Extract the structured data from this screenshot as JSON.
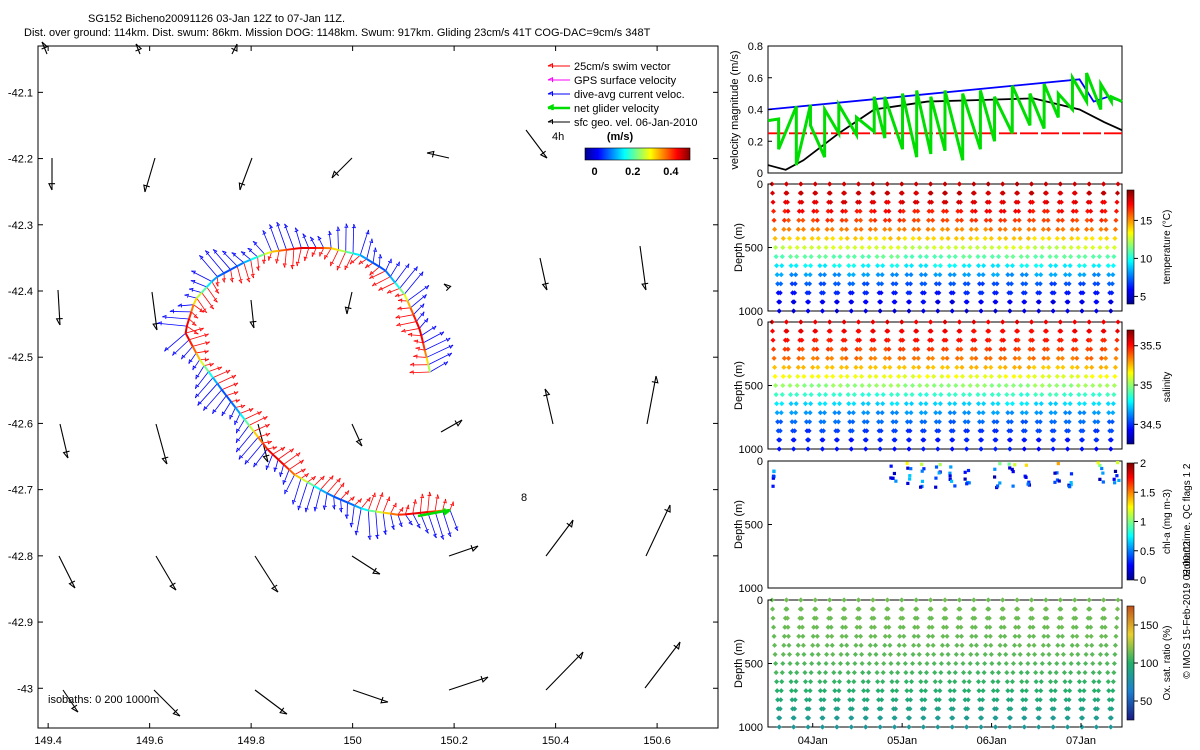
{
  "header": {
    "line1": "SG152 Bicheno20091126 03-Jan 12Z to 07-Jan 11Z.",
    "line2": "Dist. over ground: 114km. Dist. swum: 86km. Mission DOG: 1148km. Swum: 917km. Gliding 23cm/s 41T COG-DAC=9cm/s 348T"
  },
  "map": {
    "legend": [
      {
        "label": "25cm/s swim vector",
        "color": "#ff0000"
      },
      {
        "label": "GPS surface velocity",
        "color": "#ff00ff"
      },
      {
        "label": "dive-avg current veloc.",
        "color": "#0000ff"
      },
      {
        "label": "net glider velocity",
        "color": "#00dd00"
      },
      {
        "label": "sfc geo. vel. 06-Jan-2010",
        "color": "#000000"
      }
    ],
    "colorbar_unit": "(m/s)",
    "colorbar_ticks": [
      "0",
      "0.2",
      "0.4"
    ],
    "colorbar_range": [
      -0.05,
      0.5
    ],
    "time_label": "4h",
    "annotation_8": "8",
    "isobaths_label": "isobaths: 0   200  1000m",
    "x_ticks": [
      "149.4",
      "149.6",
      "149.8",
      "150",
      "150.2",
      "150.4",
      "150.6"
    ],
    "x_tick_values": [
      149.4,
      149.6,
      149.8,
      150.0,
      150.2,
      150.4,
      150.6
    ],
    "y_ticks": [
      "-42.1",
      "-42.2",
      "-42.3",
      "-42.4",
      "-42.5",
      "-42.6",
      "-42.7",
      "-42.8",
      "-42.9",
      "-43"
    ],
    "y_tick_values": [
      -42.1,
      -42.2,
      -42.3,
      -42.4,
      -42.5,
      -42.6,
      -42.7,
      -42.8,
      -42.9,
      -43.0
    ],
    "xlim": [
      149.38,
      150.72
    ],
    "ylim": [
      -43.06,
      -42.03
    ]
  },
  "chart_data": [
    {
      "type": "line",
      "ylabel": "velocity magnitude (m/s)",
      "y_ticks": [
        "0",
        "0.2",
        "0.4",
        "0.6",
        "0.8"
      ],
      "y_tick_values": [
        0,
        0.2,
        0.4,
        0.6,
        0.8
      ],
      "ylim": [
        0,
        0.8
      ],
      "xlim": [
        0,
        100
      ],
      "series": [
        {
          "color": "#0000ff",
          "x": [
            0,
            88,
            92,
            96,
            100
          ],
          "values": [
            0.4,
            0.59,
            0.45,
            0.48,
            0.45
          ]
        },
        {
          "color": "#000000",
          "x": [
            0,
            5,
            10,
            20,
            30,
            45,
            60,
            75,
            88,
            95,
            100
          ],
          "values": [
            0.05,
            0.02,
            0.08,
            0.25,
            0.4,
            0.45,
            0.46,
            0.47,
            0.4,
            0.32,
            0.27
          ]
        },
        {
          "color": "#ff0000",
          "x": [
            0,
            100
          ],
          "values": [
            0.25,
            0.25
          ]
        },
        {
          "color": "#00dd00",
          "x": [
            0,
            3,
            3,
            8,
            8,
            12,
            12,
            16,
            16,
            20,
            20,
            25,
            25,
            30,
            30,
            33,
            33,
            38,
            38,
            42,
            42,
            46,
            46,
            50,
            50,
            55,
            55,
            60,
            60,
            64,
            64,
            69,
            69,
            74,
            74,
            78,
            78,
            82,
            82,
            86,
            86,
            90,
            90,
            94,
            94,
            97,
            97,
            100
          ],
          "values": [
            0.33,
            0.34,
            0.15,
            0.42,
            0.05,
            0.43,
            0.3,
            0.1,
            0.4,
            0.25,
            0.43,
            0.24,
            0.35,
            0.26,
            0.48,
            0.22,
            0.48,
            0.15,
            0.5,
            0.1,
            0.52,
            0.12,
            0.48,
            0.14,
            0.52,
            0.08,
            0.5,
            0.15,
            0.52,
            0.2,
            0.48,
            0.25,
            0.55,
            0.3,
            0.5,
            0.28,
            0.56,
            0.35,
            0.5,
            0.4,
            0.6,
            0.45,
            0.63,
            0.4,
            0.56,
            0.45,
            0.48,
            0.45
          ]
        }
      ]
    },
    {
      "type": "scatter",
      "ylabel": "Depth (m)",
      "colorbar_label": "temperature (°C)",
      "colorbar_ticks": [
        "5",
        "10",
        "15"
      ],
      "colorbar_tick_values": [
        5,
        10,
        15
      ],
      "colorbar_range": [
        4,
        19
      ],
      "y_ticks": [
        "0",
        "500",
        "1000"
      ],
      "y_tick_values": [
        0,
        500,
        1000
      ],
      "ylim": [
        0,
        1000
      ],
      "profile": {
        "top": 18.5,
        "bottom": 4.5,
        "mid_depth": 550
      }
    },
    {
      "type": "scatter",
      "ylabel": "Depth (m)",
      "colorbar_label": "salinity",
      "colorbar_ticks": [
        "34.5",
        "35",
        "35.5"
      ],
      "colorbar_tick_values": [
        34.5,
        35,
        35.5
      ],
      "colorbar_range": [
        34.25,
        35.7
      ],
      "y_ticks": [
        "0",
        "500",
        "1000"
      ],
      "y_tick_values": [
        0,
        500,
        1000
      ],
      "ylim": [
        0,
        1000
      ],
      "profile": {
        "top": 35.6,
        "bottom": 34.4,
        "mid_depth": 500
      }
    },
    {
      "type": "scatter",
      "ylabel": "Depth (m)",
      "colorbar_label": "chl-a (mg m-3)",
      "colorbar_ticks": [
        "0",
        "0.5",
        "1",
        "1.5",
        "2"
      ],
      "colorbar_tick_values": [
        0,
        0.5,
        1,
        1.5,
        2
      ],
      "colorbar_range": [
        0,
        2
      ],
      "y_ticks": [
        "0",
        "500",
        "1000"
      ],
      "y_tick_values": [
        0,
        500,
        1000
      ],
      "ylim": [
        0,
        1000
      ]
    },
    {
      "type": "scatter",
      "ylabel": "Depth (m)",
      "colorbar_label": "Ox. sat. ratio (%)",
      "colorbar_ticks": [
        "50",
        "100",
        "150"
      ],
      "colorbar_tick_values": [
        50,
        100,
        150
      ],
      "colorbar_range": [
        25,
        175
      ],
      "y_ticks": [
        "0",
        "500",
        "1000"
      ],
      "y_tick_values": [
        0,
        500,
        1000
      ],
      "ylim": [
        0,
        1000
      ],
      "x_ticks": [
        "04Jan",
        "05Jan",
        "06Jan",
        "07Jan"
      ],
      "x_tick_values": [
        12,
        36,
        60,
        84
      ],
      "xlim": [
        0,
        95
      ],
      "profile": {
        "top": 115,
        "bottom": 72,
        "mid_depth": 800
      }
    }
  ],
  "side_text": {
    "qc": "Hobart time. QC flags 1  2",
    "credit": "© IMOS 15-Feb-2019 02:00:02"
  }
}
